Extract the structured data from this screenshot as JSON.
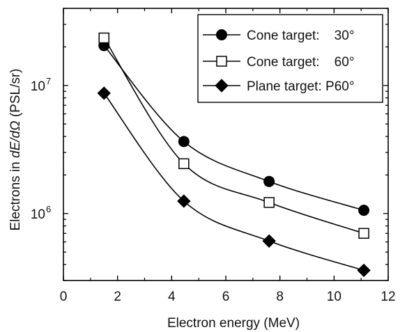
{
  "chart_data": {
    "type": "line",
    "title": "",
    "xlabel": "Electron energy (MeV)",
    "ylabel_prefix": "Electrons in ",
    "ylabel_italic": "dE/dΩ",
    "ylabel_suffix": " (PSL/sr)",
    "xlim": [
      0,
      12
    ],
    "ylim": [
      300000,
      40000000
    ],
    "yscale": "log",
    "x_ticks": [
      0,
      2,
      4,
      6,
      8,
      10,
      12
    ],
    "x_tick_labels": [
      "0",
      "2",
      "4",
      "6",
      "8",
      "10",
      "12"
    ],
    "y_tick_labels": [
      {
        "base": "10",
        "exp": "6",
        "value": 1000000
      },
      {
        "base": "10",
        "exp": "7",
        "value": 10000000
      }
    ],
    "legend_position": "top-right",
    "series": [
      {
        "name": "Cone target:    30°",
        "marker": "filled-circle",
        "x": [
          1.5,
          4.45,
          7.6,
          11.1
        ],
        "y": [
          20500000,
          3650000,
          1780000,
          1060000
        ]
      },
      {
        "name": "Cone target:    60°",
        "marker": "open-square",
        "x": [
          1.5,
          4.45,
          7.6,
          11.1
        ],
        "y": [
          23500000,
          2450000,
          1220000,
          700000
        ]
      },
      {
        "name": "Plane target: P60°",
        "marker": "filled-diamond",
        "x": [
          1.5,
          4.45,
          7.6,
          11.1
        ],
        "y": [
          8700000,
          1250000,
          610000,
          360000
        ]
      }
    ]
  }
}
